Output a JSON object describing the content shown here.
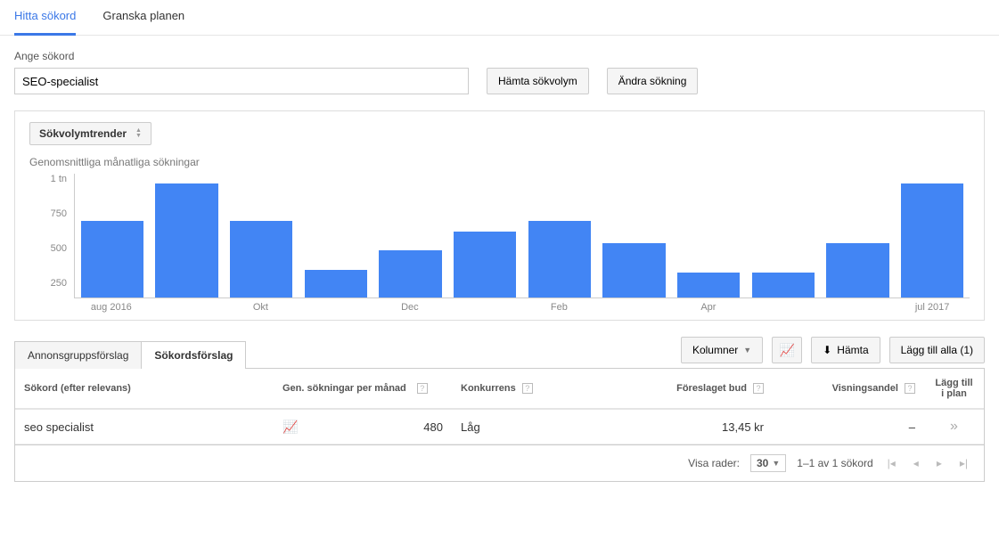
{
  "tabs": {
    "find": "Hitta sökord",
    "review": "Granska planen"
  },
  "search": {
    "label": "Ange sökord",
    "value": "SEO-specialist",
    "getVolume": "Hämta sökvolym",
    "editSearch": "Ändra sökning"
  },
  "chart": {
    "dropdown": "Sökvolymtrender",
    "title": "Genomsnittliga månatliga sökningar",
    "type": "bar",
    "ylim": [
      0,
      1000
    ],
    "yticks": [
      "1 tn",
      "750",
      "500",
      "250"
    ],
    "bar_color": "#4285f4",
    "axis_color": "#cccccc",
    "background_color": "#ffffff",
    "bars": [
      {
        "label": "aug 2016",
        "value": 620
      },
      {
        "label": "",
        "value": 920
      },
      {
        "label": "Okt",
        "value": 620
      },
      {
        "label": "",
        "value": 220
      },
      {
        "label": "Dec",
        "value": 380
      },
      {
        "label": "",
        "value": 530
      },
      {
        "label": "Feb",
        "value": 620
      },
      {
        "label": "",
        "value": 440
      },
      {
        "label": "Apr",
        "value": 200
      },
      {
        "label": "",
        "value": 200
      },
      {
        "label": "",
        "value": 440
      },
      {
        "label": "jul 2017",
        "value": 920
      }
    ]
  },
  "resultTabs": {
    "adgroup": "Annonsgruppsförslag",
    "keywords": "Sökordsförslag"
  },
  "toolbar": {
    "columns": "Kolumner",
    "download": "Hämta",
    "addAll": "Lägg till alla (1)"
  },
  "table": {
    "headers": {
      "keyword": "Sökord (efter relevans)",
      "searches": "Gen. sökningar per månad",
      "competition": "Konkurrens",
      "bid": "Föreslaget bud",
      "share": "Visningsandel",
      "add": "Lägg till i plan"
    },
    "rows": [
      {
        "keyword": "seo specialist",
        "searches": "480",
        "competition": "Låg",
        "bid": "13,45 kr",
        "share": "–"
      }
    ]
  },
  "pager": {
    "showRows": "Visa rader:",
    "rows": "30",
    "range": "1–1 av 1 sökord"
  }
}
